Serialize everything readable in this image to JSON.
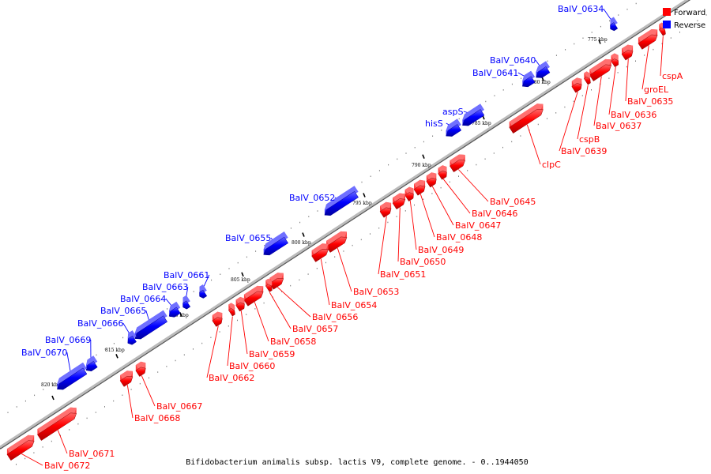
{
  "caption": "Bifidobacterium animalis subsp. lactis V9, complete genome. - 0..1944050",
  "legend": [
    {
      "label": "Forward",
      "color": "#ff0000"
    },
    {
      "label": "Reverse",
      "color": "#0000ff"
    }
  ],
  "colors": {
    "forward": "#ff0000",
    "reverse": "#0000ff",
    "forward_dark": "#c40000",
    "reverse_dark": "#0000b0",
    "backbone": "#999999"
  },
  "ticks": [
    {
      "label": "775 kbp"
    },
    {
      "label": "780 kbp"
    },
    {
      "label": "785 kbp"
    },
    {
      "label": "790 kbp"
    },
    {
      "label": "795 kbp"
    },
    {
      "label": "800 kbp"
    },
    {
      "label": "805 kbp"
    },
    {
      "label": "810 kbp"
    },
    {
      "label": "815 kbp"
    },
    {
      "label": "820 kbp"
    }
  ],
  "genes": [
    {
      "id": "BalV_0634",
      "strand": "reverse"
    },
    {
      "id": "BalV_0640",
      "strand": "reverse"
    },
    {
      "id": "BalV_0641",
      "strand": "reverse"
    },
    {
      "id": "aspS",
      "strand": "reverse"
    },
    {
      "id": "hisS",
      "strand": "reverse"
    },
    {
      "id": "BalV_0652",
      "strand": "reverse"
    },
    {
      "id": "BalV_0655",
      "strand": "reverse"
    },
    {
      "id": "BalV_0661",
      "strand": "reverse"
    },
    {
      "id": "BalV_0663",
      "strand": "reverse"
    },
    {
      "id": "BalV_0664",
      "strand": "reverse"
    },
    {
      "id": "BalV_0665",
      "strand": "reverse"
    },
    {
      "id": "BalV_0666",
      "strand": "reverse"
    },
    {
      "id": "BalV_0669",
      "strand": "reverse"
    },
    {
      "id": "BalV_0670",
      "strand": "reverse"
    },
    {
      "id": "cspA",
      "strand": "forward"
    },
    {
      "id": "groEL",
      "strand": "forward"
    },
    {
      "id": "BalV_0635",
      "strand": "forward"
    },
    {
      "id": "BalV_0636",
      "strand": "forward"
    },
    {
      "id": "BalV_0637",
      "strand": "forward"
    },
    {
      "id": "cspB",
      "strand": "forward"
    },
    {
      "id": "BalV_0639",
      "strand": "forward"
    },
    {
      "id": "clpC",
      "strand": "forward"
    },
    {
      "id": "BalV_0645",
      "strand": "forward"
    },
    {
      "id": "BalV_0646",
      "strand": "forward"
    },
    {
      "id": "BalV_0647",
      "strand": "forward"
    },
    {
      "id": "BalV_0648",
      "strand": "forward"
    },
    {
      "id": "BalV_0649",
      "strand": "forward"
    },
    {
      "id": "BalV_0650",
      "strand": "forward"
    },
    {
      "id": "BalV_0651",
      "strand": "forward"
    },
    {
      "id": "BalV_0653",
      "strand": "forward"
    },
    {
      "id": "BalV_0654",
      "strand": "forward"
    },
    {
      "id": "BalV_0656",
      "strand": "forward"
    },
    {
      "id": "BalV_0657",
      "strand": "forward"
    },
    {
      "id": "BalV_0658",
      "strand": "forward"
    },
    {
      "id": "BalV_0659",
      "strand": "forward"
    },
    {
      "id": "BalV_0660",
      "strand": "forward"
    },
    {
      "id": "BalV_0662",
      "strand": "forward"
    },
    {
      "id": "BalV_0667",
      "strand": "forward"
    },
    {
      "id": "BalV_0668",
      "strand": "forward"
    },
    {
      "id": "BalV_0671",
      "strand": "forward"
    },
    {
      "id": "BalV_0672",
      "strand": "forward"
    }
  ]
}
